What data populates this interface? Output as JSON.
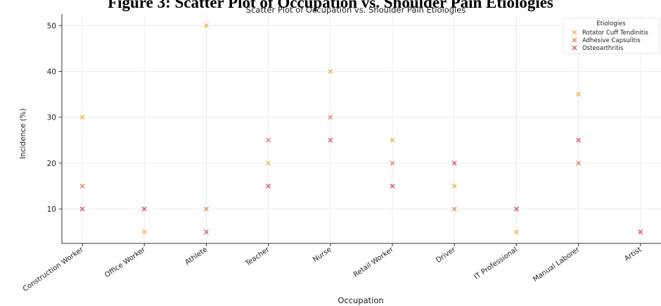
{
  "figure_caption": "Figure 3: Scatter Plot of Occupation vs. Shoulder Pain Etiologies",
  "colors": {
    "rotator_cuff_tendinitis": "#e9b444",
    "adhesive_capsulitis": "#e5845a",
    "osteoarthritis": "#d94d62",
    "grid": "#e6e6e6",
    "axis": "#333333"
  },
  "chart_data": {
    "type": "scatter",
    "title": "Scatter Plot of Occupation vs. Shoulder Pain Etiologies",
    "xlabel": "Occupation",
    "ylabel": "Incidence (%)",
    "categories": [
      "Construction Worker",
      "Office Worker",
      "Athlete",
      "Teacher",
      "Nurse",
      "Retail Worker",
      "Driver",
      "IT Professional",
      "Manual Laborer",
      "Artist"
    ],
    "ylim": [
      2.5,
      52.5
    ],
    "yticks": [
      10,
      20,
      30,
      40,
      50
    ],
    "grid": true,
    "legend": {
      "title": "Etiologies",
      "placement": "top-right"
    },
    "marker": "x",
    "series": [
      {
        "name": "Rotator Cuff Tendinitis",
        "color_key": "rotator_cuff_tendinitis",
        "values": [
          30,
          5,
          50,
          20,
          40,
          25,
          15,
          5,
          35,
          5
        ]
      },
      {
        "name": "Adhesive Capsulitis",
        "color_key": "adhesive_capsulitis",
        "values": [
          15,
          10,
          10,
          25,
          30,
          20,
          10,
          10,
          20,
          5
        ]
      },
      {
        "name": "Osteoarthritis",
        "color_key": "osteoarthritis",
        "values": [
          10,
          10,
          5,
          15,
          25,
          15,
          20,
          10,
          25,
          5
        ]
      }
    ]
  }
}
